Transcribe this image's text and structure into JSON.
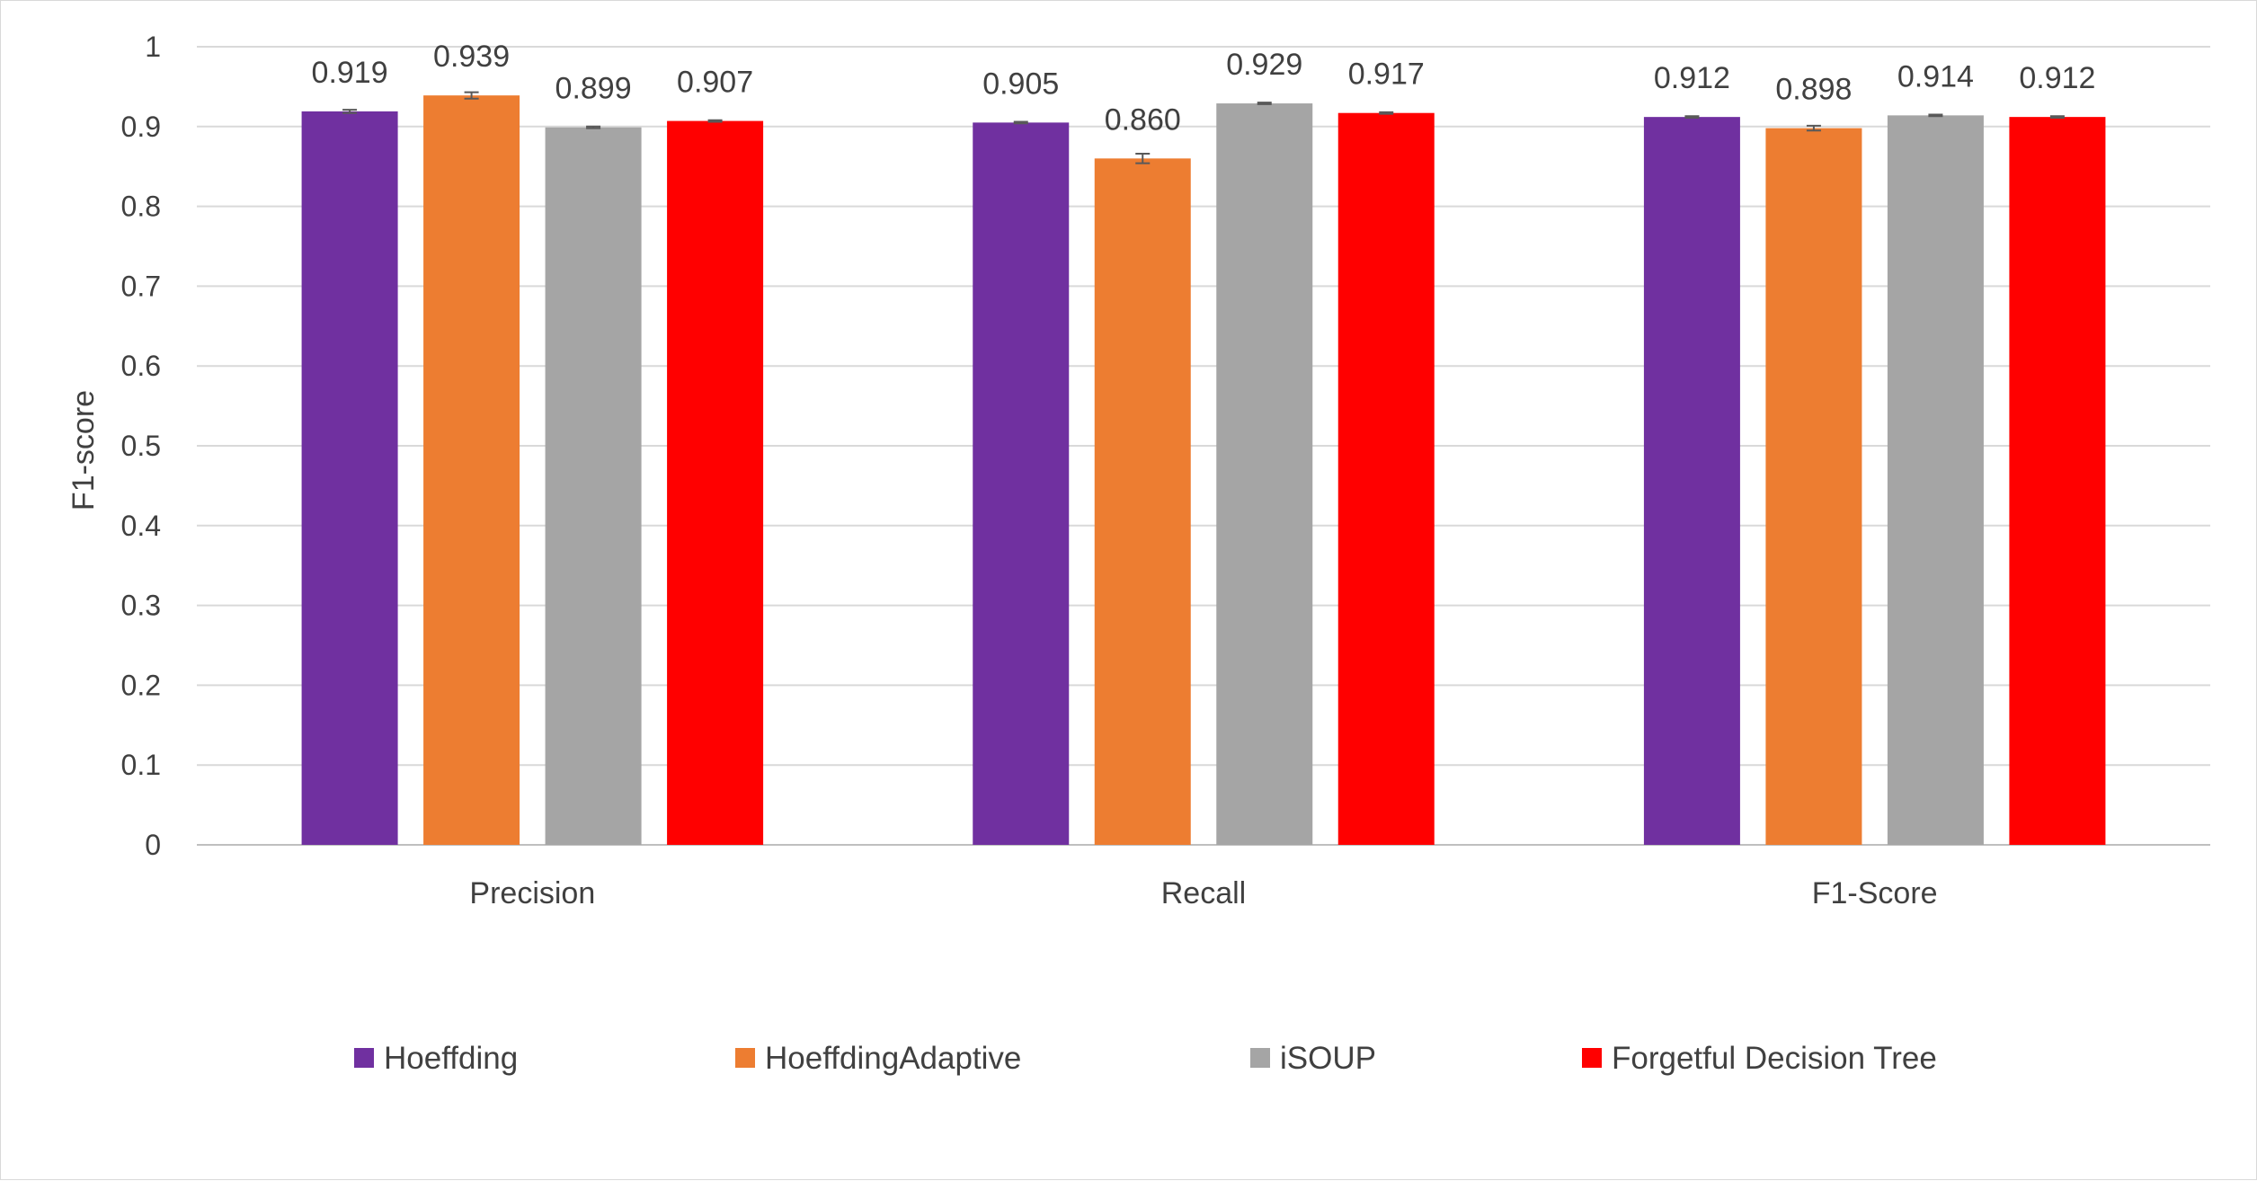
{
  "chart_data": {
    "type": "bar",
    "title": "",
    "xlabel": "",
    "ylabel": "F1-score",
    "ylim": [
      0,
      1
    ],
    "yticks": [
      "0",
      "0.1",
      "0.2",
      "0.3",
      "0.4",
      "0.5",
      "0.6",
      "0.7",
      "0.8",
      "0.9",
      "1"
    ],
    "grid": true,
    "legend_position": "bottom",
    "categories": [
      "Precision",
      "Recall",
      "F1-Score"
    ],
    "series": [
      {
        "name": "Hoeffding",
        "color": "#7030a0",
        "values": [
          0.919,
          0.905,
          0.912
        ],
        "labels": [
          "0.919",
          "0.905",
          "0.912"
        ],
        "error": [
          0.002,
          0.001,
          0.001
        ]
      },
      {
        "name": "HoeffdingAdaptive",
        "color": "#ed7d31",
        "values": [
          0.939,
          0.86,
          0.898
        ],
        "labels": [
          "0.939",
          "0.860",
          "0.898"
        ],
        "error": [
          0.004,
          0.006,
          0.003
        ]
      },
      {
        "name": "iSOUP",
        "color": "#a5a5a5",
        "values": [
          0.899,
          0.929,
          0.914
        ],
        "labels": [
          "0.899",
          "0.929",
          "0.914"
        ],
        "error": [
          0.001,
          0.001,
          0.001
        ]
      },
      {
        "name": "Forgetful Decision Tree",
        "color": "#ff0000",
        "values": [
          0.907,
          0.917,
          0.912
        ],
        "labels": [
          "0.907",
          "0.917",
          "0.912"
        ],
        "error": [
          0.001,
          0.001,
          0.001
        ]
      }
    ]
  }
}
